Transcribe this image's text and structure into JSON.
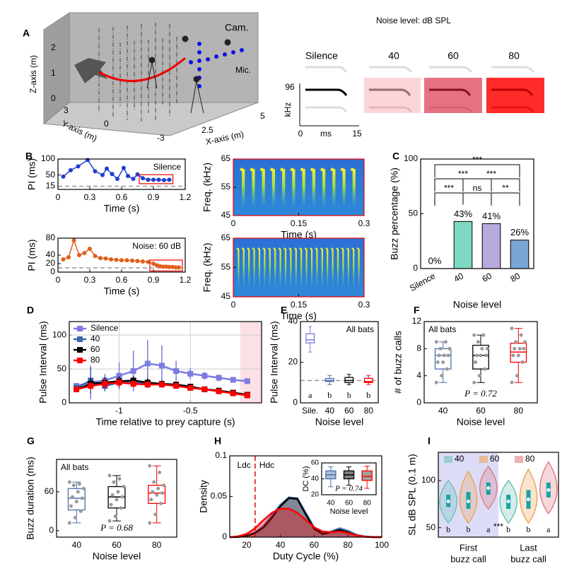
{
  "figure": {
    "label": "A",
    "z_label": "Z-axis (m)",
    "y_label": "Y-axis (m)",
    "x_label": "X-axis (m)",
    "z_ticks": [
      "2",
      "1",
      "0"
    ],
    "y_ticks": [
      "3",
      "0",
      "-3"
    ],
    "x_ticks": [
      "2.5",
      "5"
    ],
    "cam": "Cam.",
    "mic": "Mic.",
    "noise_title": "Noise level: dB SPL",
    "columns": [
      "Silence",
      "40",
      "60",
      "80"
    ],
    "icon_y_top": "96",
    "icon_y_unit": "kHz",
    "icon_x_start": "0",
    "icon_x_unit": "ms",
    "icon_x_end": "15"
  },
  "chart_data": [
    {
      "type": "line",
      "label": "B",
      "annotation": "Silence",
      "xlabel": "Time (s)",
      "ylabel": "PI (ms)",
      "xlim": [
        0,
        1.2
      ],
      "xticks": [
        0,
        0.3,
        0.6,
        0.9,
        1.2
      ],
      "ylim": [
        5,
        100
      ],
      "yticks": [
        15,
        50,
        100
      ],
      "reference_line": 15,
      "color": "#1f3fd0",
      "x": [
        0.05,
        0.12,
        0.19,
        0.28,
        0.35,
        0.42,
        0.46,
        0.51,
        0.56,
        0.62,
        0.66,
        0.71,
        0.75,
        0.8,
        0.85,
        0.9,
        0.95,
        1.0,
        1.05
      ],
      "values": [
        45,
        65,
        77,
        97,
        62,
        50,
        70,
        53,
        38,
        72,
        47,
        38,
        52,
        40,
        35,
        35,
        35,
        34,
        35
      ]
    },
    {
      "type": "spectrogram",
      "xlabel": "Time (s)",
      "ylabel": "Freq. (kHz)",
      "xlim": [
        0,
        0.3
      ],
      "xticks": [
        0,
        0.15,
        0.3
      ],
      "ylim": [
        45,
        65
      ],
      "yticks": [
        45,
        55,
        65
      ]
    },
    {
      "type": "bar",
      "label": "C",
      "xlabel": "Noise level",
      "ylabel": "Buzz percentage (%)",
      "categories": [
        "Silence",
        "40",
        "60",
        "80"
      ],
      "values": [
        0,
        43,
        41,
        26
      ],
      "value_labels": [
        "0%",
        "43%",
        "41%",
        "26%"
      ],
      "colors": [
        "#ffffff",
        "#7fd6c2",
        "#b8a9de",
        "#7aa6d6"
      ],
      "ylim": [
        0,
        100
      ],
      "yticks": [
        0,
        50,
        100
      ],
      "brackets": [
        {
          "between": [
            0,
            1
          ],
          "label": "***"
        },
        {
          "between": [
            1,
            2
          ],
          "label": "ns"
        },
        {
          "between": [
            2,
            3
          ],
          "label": "**"
        },
        {
          "between": [
            0,
            2
          ],
          "label": "***"
        },
        {
          "between": [
            1,
            3
          ],
          "label": "***"
        },
        {
          "between": [
            0,
            3
          ],
          "label": "***"
        }
      ]
    },
    {
      "type": "line",
      "annotation": "Noise: 60 dB",
      "xlabel": "Time (s)",
      "ylabel": "PI (ms)",
      "xlim": [
        0,
        1.2
      ],
      "xticks": [
        0,
        0.3,
        0.6,
        0.9,
        1.2
      ],
      "ylim": [
        0,
        80
      ],
      "yticks": [
        0,
        20,
        40,
        80
      ],
      "reference_line": 10,
      "color": "#e0601a",
      "x": [
        0.05,
        0.1,
        0.15,
        0.2,
        0.25,
        0.3,
        0.35,
        0.4,
        0.45,
        0.5,
        0.55,
        0.6,
        0.65,
        0.7,
        0.75,
        0.8,
        0.85,
        0.9,
        0.93,
        0.96,
        0.99,
        1.02,
        1.05,
        1.08,
        1.11,
        1.14
      ],
      "values": [
        30,
        35,
        75,
        40,
        45,
        55,
        38,
        33,
        32,
        30,
        29,
        28,
        28,
        27,
        26,
        25,
        24,
        20,
        16,
        14,
        13,
        13,
        12,
        12,
        11,
        11
      ]
    },
    {
      "type": "spectrogram",
      "xlabel": "Time (s)",
      "ylabel": "Freq. (kHz)",
      "xlim": [
        0,
        0.3
      ],
      "xticks": [
        0,
        0.15,
        0.3
      ],
      "ylim": [
        45,
        65
      ],
      "yticks": [
        45,
        55,
        65
      ]
    },
    {
      "type": "line",
      "label": "D",
      "xlabel": "Time relative to prey capture (s)",
      "ylabel": "Pulse Interval (ms)",
      "xlim": [
        -1.35,
        0
      ],
      "xticks": [
        -1,
        -0.5
      ],
      "ylim": [
        0,
        120
      ],
      "yticks": [
        0,
        50,
        100
      ],
      "grid": true,
      "legend": "upper left",
      "x": [
        -1.3,
        -1.2,
        -1.1,
        -1.0,
        -0.9,
        -0.8,
        -0.7,
        -0.6,
        -0.5,
        -0.4,
        -0.3,
        -0.2,
        -0.1
      ],
      "series": [
        {
          "name": "Silence",
          "color": "#7b7be0",
          "values": [
            25,
            30,
            33,
            40,
            47,
            58,
            55,
            47,
            43,
            40,
            37,
            34,
            32
          ],
          "errors": [
            3,
            25,
            10,
            20,
            30,
            35,
            30,
            15,
            8,
            6,
            5,
            4,
            3
          ]
        },
        {
          "name": "40",
          "color": "#3a63a8",
          "values": [
            22,
            33,
            25,
            30,
            30,
            28,
            27,
            26,
            23,
            20,
            18,
            15,
            12
          ],
          "errors": [
            3,
            20,
            8,
            8,
            6,
            6,
            5,
            4,
            4,
            3,
            3,
            3,
            3
          ]
        },
        {
          "name": "60",
          "color": "#000000",
          "values": [
            20,
            28,
            30,
            32,
            33,
            30,
            28,
            27,
            24,
            20,
            18,
            15,
            12
          ],
          "errors": [
            3,
            8,
            8,
            7,
            6,
            6,
            5,
            4,
            4,
            3,
            3,
            3,
            3
          ]
        },
        {
          "name": "80",
          "color": "#ff0000",
          "values": [
            20,
            25,
            28,
            30,
            28,
            27,
            27,
            25,
            22,
            20,
            17,
            14,
            11
          ],
          "errors": [
            3,
            6,
            7,
            6,
            5,
            5,
            4,
            4,
            3,
            3,
            3,
            3,
            4
          ]
        }
      ]
    },
    {
      "type": "box",
      "label": "E",
      "annotation": "All bats",
      "xlabel": "Noise level",
      "ylabel": "Pulse Interval (ms)",
      "categories": [
        "Sile.",
        "40",
        "60",
        "80"
      ],
      "colors": [
        "#7b7be0",
        "#4a6fb0",
        "#000000",
        "#ff0000"
      ],
      "ylim": [
        0,
        40
      ],
      "yticks": [
        0,
        20,
        40
      ],
      "reference_line": 11,
      "letters": [
        "a",
        "b",
        "b",
        "b"
      ],
      "boxes": [
        {
          "min": 25,
          "q1": 29.5,
          "median": 31,
          "q3": 34,
          "max": 37.5
        },
        {
          "min": 9,
          "q1": 10.5,
          "median": 11,
          "q3": 12,
          "max": 13.5
        },
        {
          "min": 9,
          "q1": 10,
          "median": 11,
          "q3": 12.5,
          "max": 14
        },
        {
          "min": 9,
          "q1": 10,
          "median": 10.5,
          "q3": 12,
          "max": 13.5
        }
      ]
    },
    {
      "type": "box",
      "label": "F",
      "annotation": "All bats",
      "p_text": "P = 0.72",
      "xlabel": "Noise level",
      "ylabel": "# of buzz calls",
      "categories": [
        "40",
        "60",
        "80"
      ],
      "colors": [
        "#4a6fb0",
        "#000000",
        "#ff0000"
      ],
      "ylim": [
        0,
        12
      ],
      "yticks": [
        0,
        4,
        8,
        12
      ],
      "boxes": [
        {
          "min": 3,
          "q1": 5,
          "median": 7,
          "q3": 8,
          "max": 9
        },
        {
          "min": 3,
          "q1": 5,
          "median": 7,
          "q3": 8.5,
          "max": 10
        },
        {
          "min": 3,
          "q1": 6,
          "median": 7.5,
          "q3": 8.8,
          "max": 11
        }
      ],
      "points": [
        [
          3,
          4,
          5,
          6,
          6,
          7,
          7,
          7,
          8,
          8,
          9,
          9
        ],
        [
          3,
          4,
          5,
          6,
          7,
          7,
          7,
          8,
          8,
          9,
          10,
          10
        ],
        [
          3,
          4,
          6,
          7,
          7,
          8,
          8,
          8,
          9,
          9,
          10,
          11
        ]
      ]
    },
    {
      "type": "box",
      "label": "G",
      "annotation": "All bats",
      "p_text": "P = 0.68",
      "xlabel": "Noise level",
      "ylabel": "Buzz duration (ms)",
      "categories": [
        "40",
        "60",
        "80"
      ],
      "colors": [
        "#4a6fb0",
        "#000000",
        "#ff0000"
      ],
      "ylim": [
        -10,
        110
      ],
      "yticks": [
        0,
        60
      ],
      "boxes": [
        {
          "min": 12,
          "q1": 32,
          "median": 50,
          "q3": 65,
          "max": 75
        },
        {
          "min": 15,
          "q1": 35,
          "median": 52,
          "q3": 68,
          "max": 85
        },
        {
          "min": 12,
          "q1": 42,
          "median": 58,
          "q3": 70,
          "max": 100
        }
      ],
      "points": [
        [
          12,
          20,
          30,
          38,
          45,
          50,
          52,
          60,
          65,
          70,
          72,
          75
        ],
        [
          15,
          22,
          35,
          40,
          48,
          52,
          55,
          60,
          68,
          75,
          80,
          85
        ],
        [
          12,
          25,
          42,
          48,
          55,
          58,
          60,
          65,
          70,
          75,
          90,
          100
        ]
      ]
    },
    {
      "type": "density",
      "label": "H",
      "xlabel": "Duty Cycle (%)",
      "ylabel": "Density",
      "xlim": [
        10,
        100
      ],
      "xticks": [
        20,
        40,
        60,
        80,
        100
      ],
      "ylim": [
        0,
        0.1
      ],
      "yticks": [
        0,
        0.05,
        0.1
      ],
      "vline": 25,
      "vline_labels": [
        "Ldc",
        "Hdc"
      ],
      "x": [
        10,
        15,
        20,
        25,
        30,
        35,
        40,
        45,
        50,
        55,
        60,
        65,
        70,
        75,
        80,
        85,
        90,
        95,
        100
      ],
      "series": [
        {
          "color": "#5a7fc0",
          "values": [
            0,
            0.0003,
            0.002,
            0.006,
            0.014,
            0.027,
            0.04,
            0.049,
            0.048,
            0.03,
            0.012,
            0.005,
            0.007,
            0.011,
            0.008,
            0.003,
            0.001,
            0,
            0
          ]
        },
        {
          "color": "#000000",
          "values": [
            0,
            0.0002,
            0.0015,
            0.005,
            0.012,
            0.024,
            0.038,
            0.048,
            0.047,
            0.028,
            0.01,
            0.004,
            0.006,
            0.009,
            0.006,
            0.002,
            0.0005,
            0,
            0
          ]
        },
        {
          "color": "#ff0000",
          "values": [
            0,
            0.001,
            0.004,
            0.011,
            0.021,
            0.03,
            0.035,
            0.035,
            0.03,
            0.021,
            0.012,
            0.007,
            0.006,
            0.007,
            0.005,
            0.002,
            0.0005,
            0,
            0
          ]
        }
      ]
    },
    {
      "type": "box",
      "p_text": "P = 0.74",
      "xlabel": "Noise level",
      "ylabel": "DC (%)",
      "categories": [
        "40",
        "60",
        "80"
      ],
      "colors": [
        "#4a6fb0",
        "#000000",
        "#ff0000"
      ],
      "fills": [
        "#b0bcd4",
        "#7f7f7f",
        "#a0a0a0"
      ],
      "ylim": [
        20,
        60
      ],
      "yticks": [
        20,
        40,
        60
      ],
      "boxes": [
        {
          "min": 30,
          "q1": 40,
          "median": 45,
          "q3": 50,
          "max": 55
        },
        {
          "min": 32,
          "q1": 40,
          "median": 45,
          "q3": 50,
          "max": 55
        },
        {
          "min": 28,
          "q1": 38,
          "median": 43,
          "q3": 50,
          "max": 56
        }
      ]
    },
    {
      "type": "violin",
      "label": "I",
      "ylabel": "SL dB SPL (0.1 m)",
      "ylim": [
        40,
        130
      ],
      "yticks": [
        50,
        100
      ],
      "group_labels": [
        [
          "First",
          "buzz call"
        ],
        [
          "Last",
          "buzz call"
        ]
      ],
      "annotation": "***",
      "letters": [
        "b",
        "b",
        "a",
        "b",
        "b",
        "a"
      ],
      "series": [
        {
          "name": "40",
          "color": "#6fc2bb",
          "values": [
            78,
            78
          ],
          "q1": [
            72,
            70
          ],
          "q3": [
            85,
            85
          ],
          "min": [
            55,
            55
          ],
          "max": [
            100,
            100
          ]
        },
        {
          "name": "60",
          "color": "#eda55a",
          "values": [
            78,
            80
          ],
          "q1": [
            70,
            70
          ],
          "q3": [
            88,
            90
          ],
          "min": [
            55,
            55
          ],
          "max": [
            110,
            112
          ]
        },
        {
          "name": "80",
          "color": "#e07f86",
          "values": [
            92,
            90
          ],
          "q1": [
            85,
            82
          ],
          "q3": [
            98,
            98
          ],
          "min": [
            70,
            65
          ],
          "max": [
            115,
            120
          ]
        }
      ]
    }
  ]
}
